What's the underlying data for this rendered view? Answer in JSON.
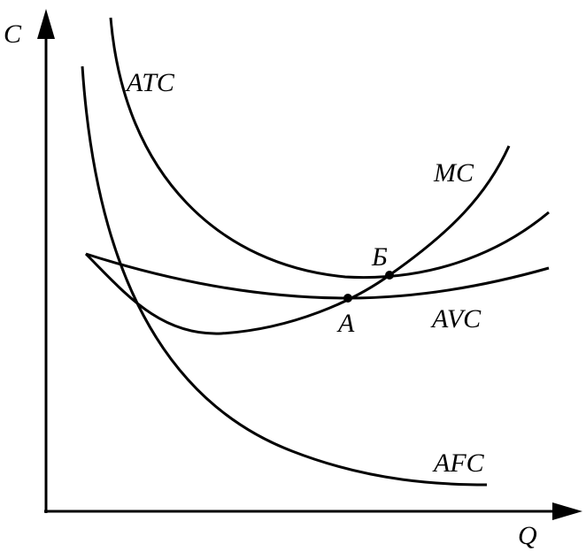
{
  "axes": {
    "y_label": "C",
    "x_label": "Q"
  },
  "curves": {
    "atc": "ATC",
    "mc": "MC",
    "avc": "AVC",
    "afc": "AFC"
  },
  "points": {
    "a": "А",
    "b": "Б"
  }
}
